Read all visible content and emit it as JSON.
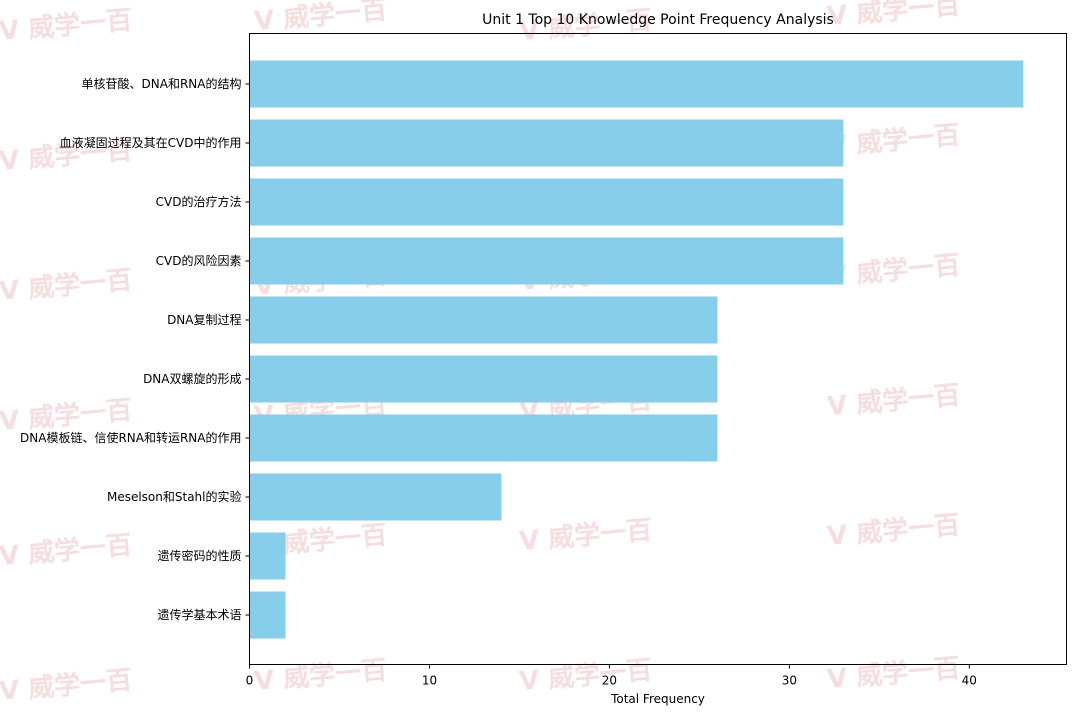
{
  "watermark": "威学一百",
  "chart_data": {
    "type": "bar",
    "orientation": "horizontal",
    "title": "Unit 1 Top 10 Knowledge Point Frequency Analysis",
    "xlabel": "Total Frequency",
    "ylabel": "",
    "xlim": [
      0,
      45.4
    ],
    "xticks": [
      0,
      10,
      20,
      30,
      40
    ],
    "grid": false,
    "bar_color": "#87ceeb",
    "categories": [
      "单核苷酸、DNA和RNA的结构",
      "血液凝固过程及其在CVD中的作用",
      "CVD的治疗方法",
      "CVD的风险因素",
      "DNA复制过程",
      "DNA双螺旋的形成",
      "DNA模板链、信使RNA和转运RNA的作用",
      "Meselson和Stahl的实验",
      "遗传密码的性质",
      "遗传学基本术语"
    ],
    "values": [
      43,
      33,
      33,
      33,
      26,
      26,
      26,
      14,
      2,
      2
    ]
  }
}
